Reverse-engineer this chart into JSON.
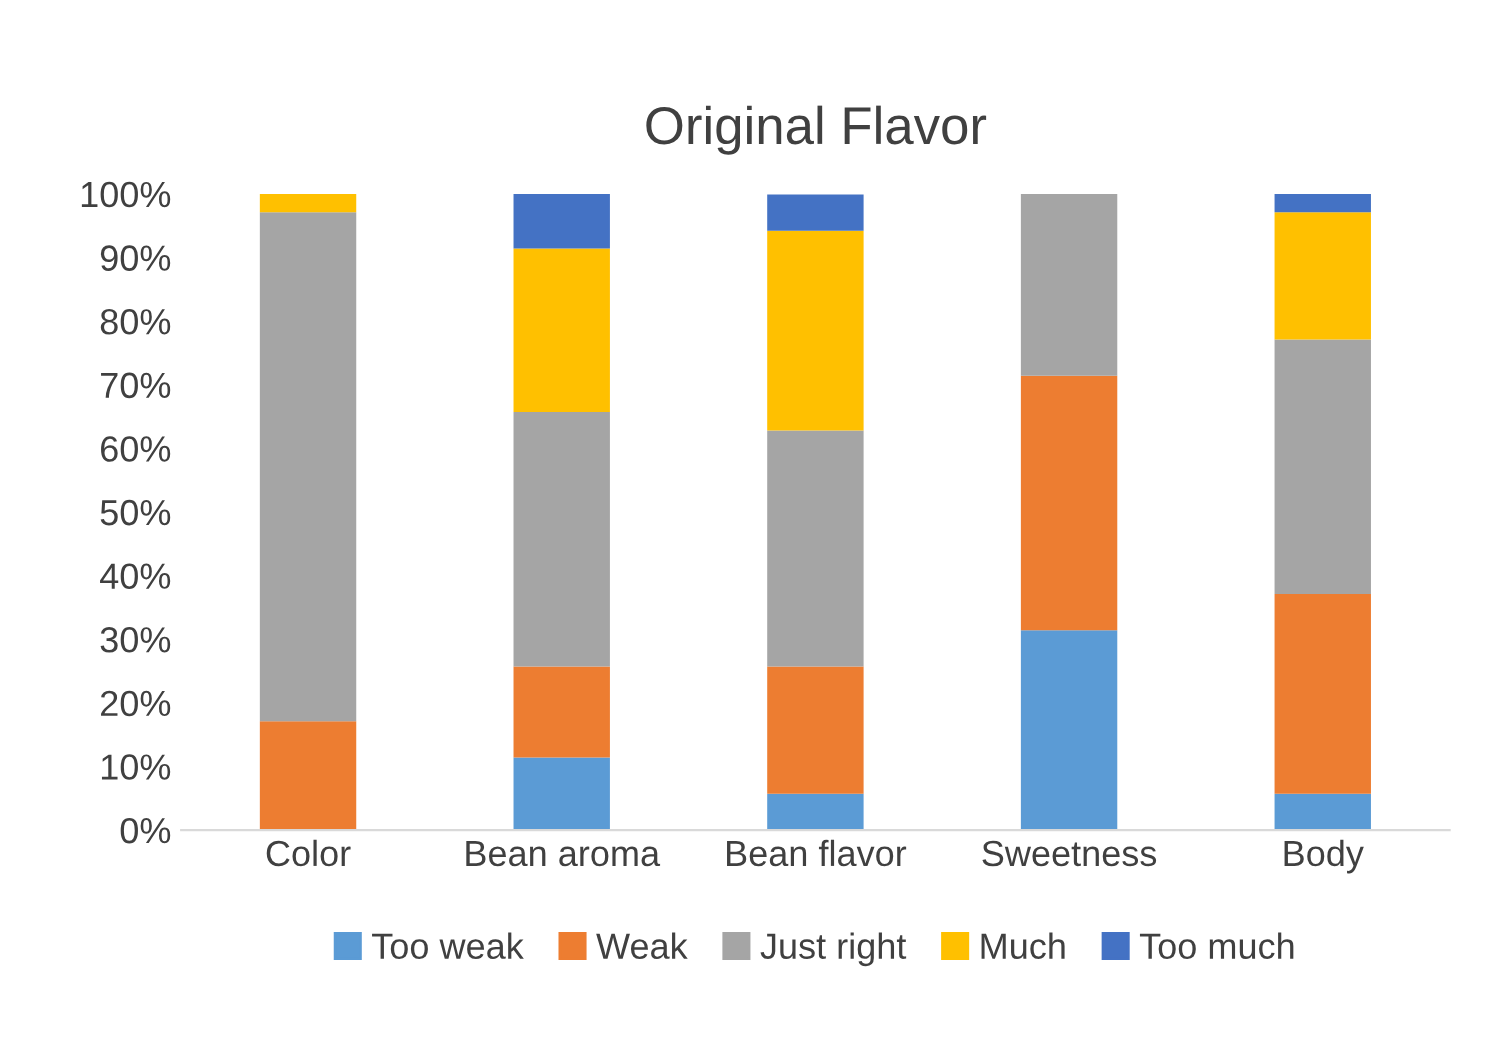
{
  "chart_data": {
    "type": "bar",
    "title": "Original Flavor",
    "stacked": true,
    "categories": [
      "Color",
      "Bean aroma",
      "Bean flavor",
      "Sweetness",
      "Body"
    ],
    "series": [
      {
        "name": "Too weak",
        "color": "#5b9bd5",
        "values": [
          0,
          11.4,
          5.7,
          31.4,
          5.7
        ]
      },
      {
        "name": "Weak",
        "color": "#ed7d31",
        "values": [
          17.1,
          14.3,
          20,
          40,
          31.4
        ]
      },
      {
        "name": "Just right",
        "color": "#a5a5a5",
        "values": [
          80,
          40,
          37.1,
          28.6,
          40
        ]
      },
      {
        "name": "Much",
        "color": "#ffc000",
        "values": [
          2.9,
          25.7,
          31.4,
          0,
          20
        ]
      },
      {
        "name": "Too much",
        "color": "#4472c4",
        "values": [
          0,
          8.6,
          5.7,
          0,
          2.9
        ]
      }
    ],
    "ylim": [
      0,
      100
    ],
    "yticks": [
      {
        "value": 0,
        "label": "0%"
      },
      {
        "value": 10,
        "label": "10%"
      },
      {
        "value": 20,
        "label": "20%"
      },
      {
        "value": 30,
        "label": "30%"
      },
      {
        "value": 40,
        "label": "40%"
      },
      {
        "value": 50,
        "label": "50%"
      },
      {
        "value": 60,
        "label": "60%"
      },
      {
        "value": 70,
        "label": "70%"
      },
      {
        "value": 80,
        "label": "80%"
      },
      {
        "value": 90,
        "label": "90%"
      },
      {
        "value": 100,
        "label": "100%"
      }
    ],
    "grid": false,
    "legend": "bottom"
  }
}
